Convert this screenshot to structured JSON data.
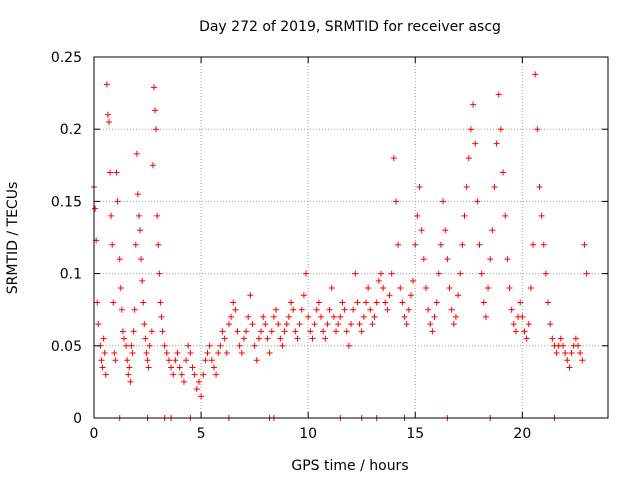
{
  "chart_data": {
    "type": "scatter",
    "title": "Day 272 of 2019, SRMTID for receiver ascg",
    "xlabel": "GPS time / hours",
    "ylabel": "SRMTID / TECUs",
    "xlim": [
      0,
      24
    ],
    "ylim": [
      0,
      0.25
    ],
    "x_ticks": [
      0,
      5,
      10,
      15,
      20
    ],
    "x_tick_labels": [
      "0",
      "5",
      "10",
      "15",
      "20"
    ],
    "y_ticks": [
      0,
      0.05,
      0.1,
      0.15,
      0.2,
      0.25
    ],
    "y_tick_labels": [
      "0",
      "0.05",
      "0.1",
      "0.15",
      "0.2",
      "0.25"
    ],
    "grid": true,
    "marker": "plus",
    "color": "#ff0000",
    "series": [
      {
        "name": "SRMTID",
        "points": [
          [
            0.0,
            0.16
          ],
          [
            0.05,
            0.145
          ],
          [
            0.1,
            0.123
          ],
          [
            0.15,
            0.08
          ],
          [
            0.2,
            0.065
          ],
          [
            0.3,
            0.05
          ],
          [
            0.35,
            0.04
          ],
          [
            0.4,
            0.035
          ],
          [
            0.45,
            0.055
          ],
          [
            0.5,
            0.045
          ],
          [
            0.55,
            0.03
          ],
          [
            0.6,
            0.231
          ],
          [
            0.65,
            0.21
          ],
          [
            0.7,
            0.205
          ],
          [
            0.75,
            0.17
          ],
          [
            0.8,
            0.14
          ],
          [
            0.85,
            0.12
          ],
          [
            0.9,
            0.08
          ],
          [
            0.95,
            0.045
          ],
          [
            1.0,
            0.04
          ],
          [
            1.05,
            0.17
          ],
          [
            1.1,
            0.15
          ],
          [
            1.2,
            0.11
          ],
          [
            1.25,
            0.09
          ],
          [
            1.3,
            0.075
          ],
          [
            1.35,
            0.06
          ],
          [
            1.4,
            0.055
          ],
          [
            1.5,
            0.05
          ],
          [
            1.55,
            0.04
          ],
          [
            1.6,
            0.03
          ],
          [
            1.65,
            0.035
          ],
          [
            1.7,
            0.025
          ],
          [
            1.75,
            0.05
          ],
          [
            1.8,
            0.045
          ],
          [
            1.85,
            0.06
          ],
          [
            1.9,
            0.075
          ],
          [
            1.95,
            0.12
          ],
          [
            2.0,
            0.183
          ],
          [
            2.05,
            0.155
          ],
          [
            2.1,
            0.14
          ],
          [
            2.15,
            0.13
          ],
          [
            2.2,
            0.11
          ],
          [
            2.25,
            0.095
          ],
          [
            2.3,
            0.08
          ],
          [
            2.35,
            0.065
          ],
          [
            2.4,
            0.055
          ],
          [
            2.45,
            0.045
          ],
          [
            2.5,
            0.04
          ],
          [
            2.55,
            0.035
          ],
          [
            2.6,
            0.05
          ],
          [
            2.7,
            0.06
          ],
          [
            2.75,
            0.175
          ],
          [
            2.8,
            0.229
          ],
          [
            2.85,
            0.213
          ],
          [
            2.9,
            0.2
          ],
          [
            2.95,
            0.14
          ],
          [
            3.0,
            0.12
          ],
          [
            3.05,
            0.1
          ],
          [
            3.1,
            0.08
          ],
          [
            3.15,
            0.07
          ],
          [
            3.2,
            0.06
          ],
          [
            3.3,
            0.05
          ],
          [
            3.4,
            0.045
          ],
          [
            3.5,
            0.04
          ],
          [
            3.6,
            0.035
          ],
          [
            3.7,
            0.03
          ],
          [
            3.8,
            0.04
          ],
          [
            3.9,
            0.045
          ],
          [
            4.0,
            0.035
          ],
          [
            4.1,
            0.03
          ],
          [
            4.2,
            0.025
          ],
          [
            4.3,
            0.04
          ],
          [
            4.4,
            0.05
          ],
          [
            4.5,
            0.045
          ],
          [
            4.6,
            0.035
          ],
          [
            4.7,
            0.03
          ],
          [
            4.8,
            0.02
          ],
          [
            4.9,
            0.025
          ],
          [
            5.0,
            0.015
          ],
          [
            5.1,
            0.03
          ],
          [
            5.2,
            0.04
          ],
          [
            5.3,
            0.045
          ],
          [
            5.4,
            0.05
          ],
          [
            5.5,
            0.04
          ],
          [
            5.6,
            0.035
          ],
          [
            5.7,
            0.03
          ],
          [
            5.8,
            0.045
          ],
          [
            5.9,
            0.05
          ],
          [
            6.0,
            0.06
          ],
          [
            6.1,
            0.055
          ],
          [
            6.2,
            0.045
          ],
          [
            6.3,
            0.065
          ],
          [
            6.4,
            0.07
          ],
          [
            6.5,
            0.08
          ],
          [
            6.6,
            0.075
          ],
          [
            6.7,
            0.06
          ],
          [
            6.8,
            0.05
          ],
          [
            6.9,
            0.045
          ],
          [
            7.0,
            0.055
          ],
          [
            7.1,
            0.06
          ],
          [
            7.2,
            0.07
          ],
          [
            7.3,
            0.085
          ],
          [
            7.4,
            0.065
          ],
          [
            7.5,
            0.05
          ],
          [
            7.6,
            0.04
          ],
          [
            7.7,
            0.055
          ],
          [
            7.8,
            0.06
          ],
          [
            7.9,
            0.07
          ],
          [
            8.0,
            0.065
          ],
          [
            8.1,
            0.055
          ],
          [
            8.2,
            0.045
          ],
          [
            8.3,
            0.06
          ],
          [
            8.4,
            0.07
          ],
          [
            8.5,
            0.075
          ],
          [
            8.6,
            0.065
          ],
          [
            8.7,
            0.055
          ],
          [
            8.8,
            0.05
          ],
          [
            8.9,
            0.06
          ],
          [
            9.0,
            0.065
          ],
          [
            9.1,
            0.07
          ],
          [
            9.2,
            0.08
          ],
          [
            9.3,
            0.075
          ],
          [
            9.4,
            0.06
          ],
          [
            9.5,
            0.055
          ],
          [
            9.6,
            0.065
          ],
          [
            9.7,
            0.075
          ],
          [
            9.8,
            0.085
          ],
          [
            9.9,
            0.1
          ],
          [
            10.0,
            0.07
          ],
          [
            10.1,
            0.06
          ],
          [
            10.2,
            0.055
          ],
          [
            10.3,
            0.065
          ],
          [
            10.4,
            0.075
          ],
          [
            10.5,
            0.08
          ],
          [
            10.6,
            0.07
          ],
          [
            10.7,
            0.06
          ],
          [
            10.8,
            0.055
          ],
          [
            10.9,
            0.065
          ],
          [
            11.0,
            0.075
          ],
          [
            11.1,
            0.09
          ],
          [
            11.2,
            0.07
          ],
          [
            11.3,
            0.06
          ],
          [
            11.4,
            0.065
          ],
          [
            11.5,
            0.07
          ],
          [
            11.6,
            0.08
          ],
          [
            11.7,
            0.075
          ],
          [
            11.8,
            0.06
          ],
          [
            11.9,
            0.05
          ],
          [
            12.0,
            0.065
          ],
          [
            12.1,
            0.075
          ],
          [
            12.2,
            0.1
          ],
          [
            12.3,
            0.08
          ],
          [
            12.4,
            0.065
          ],
          [
            12.5,
            0.06
          ],
          [
            12.6,
            0.07
          ],
          [
            12.7,
            0.08
          ],
          [
            12.8,
            0.09
          ],
          [
            12.9,
            0.075
          ],
          [
            13.0,
            0.065
          ],
          [
            13.1,
            0.07
          ],
          [
            13.2,
            0.08
          ],
          [
            13.3,
            0.095
          ],
          [
            13.4,
            0.1
          ],
          [
            13.5,
            0.09
          ],
          [
            13.6,
            0.08
          ],
          [
            13.7,
            0.075
          ],
          [
            13.8,
            0.085
          ],
          [
            13.9,
            0.1
          ],
          [
            14.0,
            0.18
          ],
          [
            14.1,
            0.15
          ],
          [
            14.2,
            0.12
          ],
          [
            14.3,
            0.09
          ],
          [
            14.4,
            0.08
          ],
          [
            14.5,
            0.07
          ],
          [
            14.6,
            0.065
          ],
          [
            14.7,
            0.075
          ],
          [
            14.8,
            0.085
          ],
          [
            14.9,
            0.095
          ],
          [
            15.0,
            0.12
          ],
          [
            15.1,
            0.14
          ],
          [
            15.2,
            0.16
          ],
          [
            15.3,
            0.13
          ],
          [
            15.4,
            0.11
          ],
          [
            15.5,
            0.09
          ],
          [
            15.6,
            0.075
          ],
          [
            15.7,
            0.065
          ],
          [
            15.8,
            0.06
          ],
          [
            15.9,
            0.07
          ],
          [
            16.0,
            0.08
          ],
          [
            16.1,
            0.1
          ],
          [
            16.2,
            0.12
          ],
          [
            16.3,
            0.15
          ],
          [
            16.4,
            0.13
          ],
          [
            16.5,
            0.11
          ],
          [
            16.6,
            0.09
          ],
          [
            16.7,
            0.075
          ],
          [
            16.8,
            0.065
          ],
          [
            16.9,
            0.07
          ],
          [
            17.0,
            0.085
          ],
          [
            17.1,
            0.1
          ],
          [
            17.2,
            0.12
          ],
          [
            17.3,
            0.14
          ],
          [
            17.4,
            0.16
          ],
          [
            17.5,
            0.18
          ],
          [
            17.6,
            0.2
          ],
          [
            17.7,
            0.217
          ],
          [
            17.8,
            0.19
          ],
          [
            17.9,
            0.15
          ],
          [
            18.0,
            0.12
          ],
          [
            18.1,
            0.1
          ],
          [
            18.2,
            0.08
          ],
          [
            18.3,
            0.07
          ],
          [
            18.4,
            0.09
          ],
          [
            18.5,
            0.11
          ],
          [
            18.6,
            0.13
          ],
          [
            18.7,
            0.16
          ],
          [
            18.8,
            0.19
          ],
          [
            18.9,
            0.224
          ],
          [
            19.0,
            0.2
          ],
          [
            19.1,
            0.17
          ],
          [
            19.2,
            0.14
          ],
          [
            19.3,
            0.11
          ],
          [
            19.4,
            0.09
          ],
          [
            19.5,
            0.075
          ],
          [
            19.6,
            0.065
          ],
          [
            19.7,
            0.06
          ],
          [
            19.8,
            0.07
          ],
          [
            19.9,
            0.08
          ],
          [
            20.0,
            0.07
          ],
          [
            20.1,
            0.06
          ],
          [
            20.2,
            0.055
          ],
          [
            20.3,
            0.065
          ],
          [
            20.4,
            0.09
          ],
          [
            20.5,
            0.12
          ],
          [
            20.6,
            0.238
          ],
          [
            20.7,
            0.2
          ],
          [
            20.8,
            0.16
          ],
          [
            20.9,
            0.14
          ],
          [
            21.0,
            0.12
          ],
          [
            21.1,
            0.1
          ],
          [
            21.2,
            0.08
          ],
          [
            21.3,
            0.065
          ],
          [
            21.4,
            0.055
          ],
          [
            21.5,
            0.05
          ],
          [
            21.6,
            0.045
          ],
          [
            21.7,
            0.05
          ],
          [
            21.8,
            0.055
          ],
          [
            21.9,
            0.05
          ],
          [
            22.0,
            0.045
          ],
          [
            22.1,
            0.04
          ],
          [
            22.2,
            0.035
          ],
          [
            22.3,
            0.045
          ],
          [
            22.4,
            0.05
          ],
          [
            22.5,
            0.055
          ],
          [
            22.6,
            0.05
          ],
          [
            22.7,
            0.045
          ],
          [
            22.8,
            0.04
          ],
          [
            22.9,
            0.12
          ],
          [
            23.0,
            0.1
          ]
        ]
      }
    ],
    "zero_points_x": [
      1.2,
      2.5,
      3.3,
      3.6,
      4.5,
      6.3,
      8.2,
      8.4,
      11.5,
      12.5,
      13.2,
      14.5,
      16.5,
      18.5,
      21.5
    ]
  }
}
